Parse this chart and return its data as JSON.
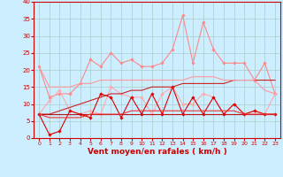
{
  "x": [
    0,
    1,
    2,
    3,
    4,
    5,
    6,
    7,
    8,
    9,
    10,
    11,
    12,
    13,
    14,
    15,
    16,
    17,
    18,
    19,
    20,
    21,
    22,
    23
  ],
  "series": [
    {
      "color": "#ff8888",
      "lw": 0.8,
      "marker": "D",
      "markersize": 1.8,
      "values": [
        21,
        12,
        13,
        13,
        16,
        23,
        21,
        25,
        22,
        23,
        21,
        21,
        22,
        26,
        36,
        22,
        34,
        26,
        22,
        22,
        22,
        17,
        22,
        13
      ]
    },
    {
      "color": "#ffaaaa",
      "lw": 0.8,
      "marker": "D",
      "markersize": 1.8,
      "values": [
        7,
        11,
        14,
        8,
        7,
        8,
        7,
        15,
        13,
        12,
        12,
        7,
        13,
        15,
        10,
        10,
        13,
        12,
        7,
        10,
        7,
        8,
        7,
        13
      ]
    },
    {
      "color": "#dd0000",
      "lw": 0.8,
      "marker": "D",
      "markersize": 1.8,
      "values": [
        7,
        1,
        2,
        8,
        7,
        6,
        13,
        12,
        6,
        12,
        7,
        13,
        7,
        15,
        7,
        12,
        7,
        12,
        7,
        10,
        7,
        8,
        7,
        7
      ]
    },
    {
      "color": "#cc2222",
      "lw": 0.8,
      "marker": null,
      "markersize": 0,
      "values": [
        7,
        7,
        8,
        9,
        10,
        11,
        12,
        13,
        13,
        14,
        14,
        15,
        15,
        15,
        16,
        16,
        16,
        16,
        16,
        17,
        17,
        17,
        17,
        17
      ]
    },
    {
      "color": "#bb1111",
      "lw": 0.8,
      "marker": null,
      "markersize": 0,
      "values": [
        7,
        7,
        7,
        7,
        7,
        7,
        7,
        7,
        7,
        7,
        7,
        7,
        7,
        7,
        7,
        7,
        7,
        7,
        7,
        7,
        7,
        7,
        7,
        7
      ]
    },
    {
      "color": "#ff9999",
      "lw": 0.8,
      "marker": null,
      "markersize": 0,
      "values": [
        21,
        15,
        15,
        15,
        16,
        16,
        17,
        17,
        17,
        17,
        17,
        17,
        17,
        17,
        17,
        18,
        18,
        18,
        17,
        17,
        17,
        17,
        14,
        13
      ]
    },
    {
      "color": "#ee3333",
      "lw": 0.8,
      "marker": null,
      "markersize": 0,
      "values": [
        7,
        6,
        6,
        6,
        6,
        7,
        7,
        7,
        7,
        8,
        8,
        8,
        8,
        8,
        8,
        8,
        8,
        8,
        8,
        8,
        7,
        7,
        7,
        7
      ]
    }
  ],
  "xlabel": "Vent moyen/en rafales ( km/h )",
  "xlim": [
    -0.5,
    23.5
  ],
  "ylim": [
    0,
    40
  ],
  "yticks": [
    0,
    5,
    10,
    15,
    20,
    25,
    30,
    35,
    40
  ],
  "xticks": [
    0,
    1,
    2,
    3,
    4,
    5,
    6,
    7,
    8,
    9,
    10,
    11,
    12,
    13,
    14,
    15,
    16,
    17,
    18,
    19,
    20,
    21,
    22,
    23
  ],
  "bg_color": "#cceeff",
  "grid_color": "#aacccc",
  "tick_color": "#cc0000",
  "label_color": "#cc0000",
  "spine_color": "#cc0000",
  "xlabel_fontsize": 6.5,
  "tick_fontsize": 4.5
}
